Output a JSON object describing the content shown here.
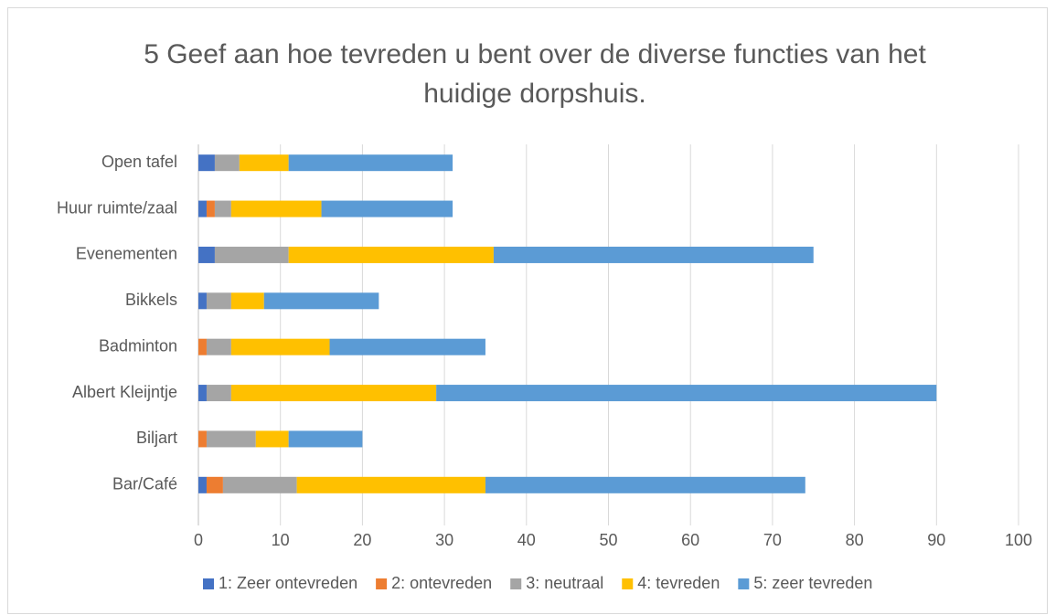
{
  "chart_data": {
    "type": "stacked-bar-horizontal",
    "title": "5 Geef aan hoe tevreden u bent over de diverse functies van het huidige dorpshuis.",
    "categories": [
      "Open tafel",
      "Huur ruimte/zaal",
      "Evenementen",
      "Bikkels",
      "Badminton",
      "Albert Kleijntje",
      "Biljart",
      "Bar/Café"
    ],
    "series": [
      {
        "name": "1: Zeer ontevreden",
        "color": "#4472c4",
        "values": [
          2,
          1,
          2,
          1,
          0,
          1,
          0,
          1
        ]
      },
      {
        "name": "2: ontevreden",
        "color": "#ed7d31",
        "values": [
          0,
          1,
          0,
          0,
          1,
          0,
          1,
          2
        ]
      },
      {
        "name": "3: neutraal",
        "color": "#a5a5a5",
        "values": [
          3,
          2,
          9,
          3,
          3,
          3,
          6,
          9
        ]
      },
      {
        "name": "4: tevreden",
        "color": "#ffc000",
        "values": [
          6,
          11,
          25,
          4,
          12,
          25,
          4,
          23
        ]
      },
      {
        "name": "5: zeer tevreden",
        "color": "#5b9bd5",
        "values": [
          20,
          16,
          39,
          14,
          19,
          61,
          9,
          39
        ]
      }
    ],
    "xlim": [
      0,
      100
    ],
    "xticks": [
      0,
      10,
      20,
      30,
      40,
      50,
      60,
      70,
      80,
      90,
      100
    ],
    "grid": true,
    "legend": "bottom"
  }
}
